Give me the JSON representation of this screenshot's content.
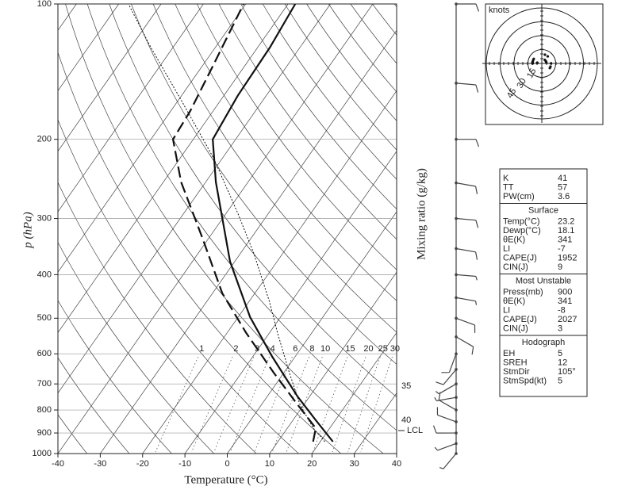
{
  "chart_data": {
    "type": "skew-t",
    "xlabel": "Temperature (°C)",
    "ylabel": "p (hPa)",
    "xlim": [
      -40,
      40
    ],
    "xticks": [
      -40,
      -30,
      -20,
      -10,
      0,
      10,
      20,
      30,
      40
    ],
    "ylim": [
      1000,
      100
    ],
    "yticks": [
      100,
      200,
      300,
      400,
      500,
      600,
      700,
      800,
      900,
      1000
    ],
    "log_scale": "y",
    "grid": true,
    "series": [
      {
        "style": "solid",
        "color": "#111111",
        "p": [
          941,
          843,
          746,
          609,
          497,
          374,
          249,
          200,
          160,
          125,
          100
        ],
        "values": [
          23.0,
          15.4,
          7.1,
          -5.4,
          -17.2,
          -31.1,
          -47.6,
          -55.4,
          -56.7,
          -57.1,
          -58.3
        ]
      },
      {
        "style": "dashed",
        "color": "#111111",
        "p": [
          941,
          878,
          777,
          661,
          539,
          440,
          331,
          249,
          200,
          173,
          136,
          100
        ],
        "values": [
          18.3,
          16.7,
          8.4,
          -2.4,
          -15.5,
          -27.7,
          -41.6,
          -55.8,
          -64.8,
          -65.4,
          -67.6,
          -70.5
        ]
      },
      {
        "style": "dotted",
        "color": "#111111",
        "p": [
          941,
          878,
          777,
          661,
          539,
          459,
          359,
          293,
          221,
          166,
          125,
          100
        ],
        "values": [
          21.1,
          16.1,
          9.0,
          1.3,
          -8.1,
          -15.2,
          -26.8,
          -37.1,
          -51.9,
          -68.5,
          -85.2,
          -97.7
        ]
      }
    ],
    "mixing_ratio": {
      "label": "Mixing ratio (g/kg)",
      "values": [
        1,
        2,
        3,
        4,
        6,
        8,
        10,
        15,
        20,
        25,
        30
      ]
    },
    "annotations": [
      35,
      40,
      "LCL"
    ],
    "winds": {
      "p": [
        100,
        150,
        200,
        250,
        300,
        350,
        400,
        450,
        500,
        550,
        600,
        650,
        700,
        750,
        800,
        850,
        900,
        950,
        1000
      ],
      "direction": [
        90,
        95,
        90,
        100,
        95,
        100,
        95,
        100,
        110,
        120,
        200,
        220,
        240,
        260,
        300,
        290,
        270,
        250,
        220
      ],
      "speed": [
        10,
        10,
        10,
        10,
        10,
        10,
        5,
        5,
        10,
        10,
        10,
        10,
        5,
        5,
        10,
        10,
        10,
        5,
        5
      ]
    },
    "hodograph": {
      "label": "knots",
      "rings": [
        15,
        30,
        45
      ]
    },
    "indices": {
      "rows": [
        [
          "K",
          41
        ],
        [
          "TT",
          57
        ],
        [
          "PW(cm)",
          3.6
        ]
      ],
      "sections": [
        {
          "title": "Surface",
          "rows": [
            [
              "Temp(°C)",
              23.2
            ],
            [
              "Dewp(°C)",
              18.1
            ],
            [
              "θE(K)",
              341
            ],
            [
              "LI",
              -7
            ],
            [
              "CAPE(J)",
              1952
            ],
            [
              "CIN(J)",
              9
            ]
          ]
        },
        {
          "title": "Most Unstable",
          "rows": [
            [
              "Press(mb)",
              900
            ],
            [
              "θE(K)",
              341
            ],
            [
              "LI",
              -8
            ],
            [
              "CAPE(J)",
              2027
            ],
            [
              "CIN(J)",
              3
            ]
          ]
        },
        {
          "title": "Hodograph",
          "rows": [
            [
              "EH",
              5
            ],
            [
              "SREH",
              12
            ],
            [
              "StmDir",
              "105°"
            ],
            [
              "StmSpd(kt)",
              5
            ]
          ]
        }
      ]
    }
  }
}
